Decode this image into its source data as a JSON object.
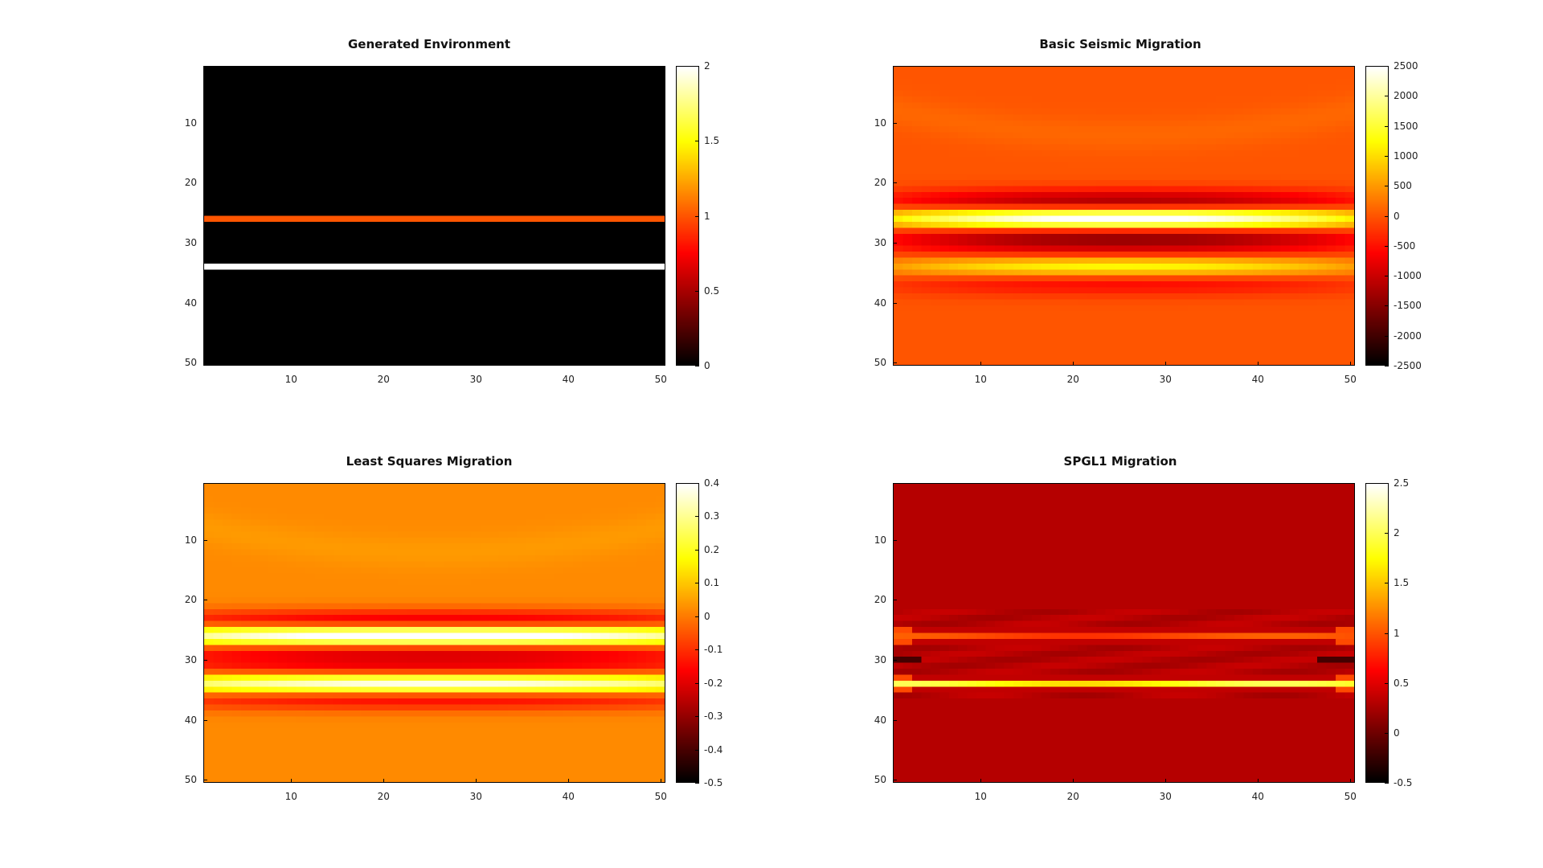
{
  "chart_data": [
    {
      "type": "heatmap",
      "title": "Generated Environment",
      "x_ticks": [
        "10",
        "20",
        "30",
        "40",
        "50"
      ],
      "y_ticks": [
        "10",
        "20",
        "30",
        "40",
        "50"
      ],
      "x_range": [
        1,
        50
      ],
      "y_range": [
        1,
        50
      ],
      "colorbar_ticks": [
        "0",
        "0.5",
        "1",
        "1.5",
        "2"
      ],
      "colorbar_range": [
        0,
        2
      ],
      "colormap": "hot",
      "description_rows": {
        "background": 0,
        "row_26": 1,
        "row_34": 2
      },
      "model": {
        "kind": "layers",
        "bands": [
          {
            "row": 26,
            "value": 1.0
          },
          {
            "row": 34,
            "value": 2.0
          }
        ],
        "background": 0
      }
    },
    {
      "type": "heatmap",
      "title": "Basic Seismic Migration",
      "x_ticks": [
        "10",
        "20",
        "30",
        "40",
        "50"
      ],
      "y_ticks": [
        "10",
        "20",
        "30",
        "40",
        "50"
      ],
      "x_range": [
        1,
        50
      ],
      "y_range": [
        1,
        50
      ],
      "colorbar_ticks": [
        "2500",
        "2000",
        "1500",
        "1000",
        "500",
        "0",
        "-500",
        "-1000",
        "-1500",
        "-2000",
        "-2500"
      ],
      "colorbar_range": [
        -2500,
        2500
      ],
      "colormap": "hot",
      "model": {
        "kind": "ricker",
        "centers": [
          26,
          34
        ],
        "amplitudes": [
          2600,
          1200
        ],
        "width": 2.6,
        "edge_falloff": 0.55,
        "background": 0
      }
    },
    {
      "type": "heatmap",
      "title": "Least Squares Migration",
      "x_ticks": [
        "10",
        "20",
        "30",
        "40",
        "50"
      ],
      "y_ticks": [
        "10",
        "20",
        "30",
        "40",
        "50"
      ],
      "x_range": [
        1,
        50
      ],
      "y_range": [
        1,
        50
      ],
      "colorbar_ticks": [
        "0.4",
        "0.3",
        "0.2",
        "0.1",
        "0",
        "-0.1",
        "-0.2",
        "-0.3",
        "-0.4",
        "-0.5"
      ],
      "colorbar_range": [
        -0.5,
        0.4
      ],
      "colormap": "hot",
      "model": {
        "kind": "ricker",
        "centers": [
          26,
          34
        ],
        "amplitudes": [
          0.42,
          0.36
        ],
        "width": 2.4,
        "edge_falloff": 0.3,
        "background": 0.02
      }
    },
    {
      "type": "heatmap",
      "title": "SPGL1 Migration",
      "x_ticks": [
        "10",
        "20",
        "30",
        "40",
        "50"
      ],
      "y_ticks": [
        "10",
        "20",
        "30",
        "40",
        "50"
      ],
      "x_range": [
        1,
        50
      ],
      "y_range": [
        1,
        50
      ],
      "colorbar_ticks": [
        "2.5",
        "2",
        "1.5",
        "1",
        "0.5",
        "0",
        "-0.5"
      ],
      "colorbar_range": [
        -0.5,
        2.5
      ],
      "colormap": "hot",
      "model": {
        "kind": "sparse",
        "bands": [
          {
            "row": 26,
            "value": 1.05
          },
          {
            "row": 34,
            "value": 2.0
          }
        ],
        "background": 0.3
      }
    }
  ]
}
